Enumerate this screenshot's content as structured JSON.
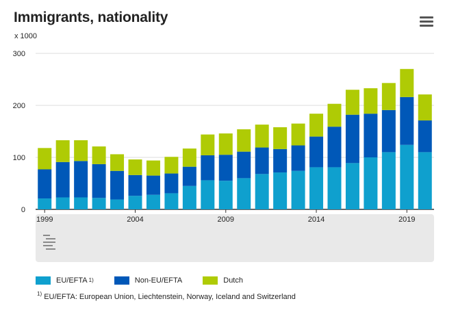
{
  "header": {
    "title": "Immigrants, nationality",
    "unit": "x 1000"
  },
  "menu_icon": "hamburger-menu-icon",
  "logo_icon": "cbs-logo-icon",
  "colors": {
    "eu": "#0fa0ce",
    "noneu": "#0058b8",
    "dutch": "#afcb05",
    "bg_panel": "#e9e9e9",
    "grid": "#dddddd"
  },
  "legend": [
    {
      "label": "EU/EFTA",
      "sup": "1)"
    },
    {
      "label": "Non-EU/EFTA",
      "sup": ""
    },
    {
      "label": "Dutch",
      "sup": ""
    }
  ],
  "footnote": {
    "sup": "1)",
    "text": "EU/EFTA: European Union, Liechtenstein, Norway, Iceland and Switzerland"
  },
  "chart_data": {
    "type": "bar",
    "stacked": true,
    "categories": [
      "1999",
      "2000",
      "2001",
      "2002",
      "2003",
      "2004",
      "2005",
      "2006",
      "2007",
      "2008",
      "2009",
      "2010",
      "2011",
      "2012",
      "2013",
      "2014",
      "2015",
      "2016",
      "2017",
      "2018",
      "2019",
      "2020"
    ],
    "x_tick_labels": [
      "1999",
      "2004",
      "2009",
      "2014",
      "2019"
    ],
    "y_ticks": [
      0,
      100,
      200,
      300
    ],
    "ylim": [
      0,
      300
    ],
    "grid": true,
    "legend_position": "bottom",
    "series": [
      {
        "name": "EU/EFTA",
        "values": [
          21,
          23,
          23,
          22,
          19,
          26,
          28,
          31,
          45,
          56,
          55,
          60,
          68,
          71,
          74,
          81,
          81,
          89,
          100,
          110,
          124,
          110
        ]
      },
      {
        "name": "Non-EU/EFTA",
        "values": [
          56,
          68,
          70,
          65,
          55,
          40,
          37,
          38,
          37,
          48,
          50,
          51,
          51,
          45,
          49,
          59,
          78,
          93,
          84,
          81,
          92,
          61
        ]
      },
      {
        "name": "Dutch",
        "values": [
          41,
          42,
          40,
          34,
          32,
          30,
          29,
          32,
          35,
          40,
          41,
          43,
          44,
          42,
          42,
          44,
          44,
          48,
          49,
          52,
          54,
          50
        ]
      }
    ]
  }
}
